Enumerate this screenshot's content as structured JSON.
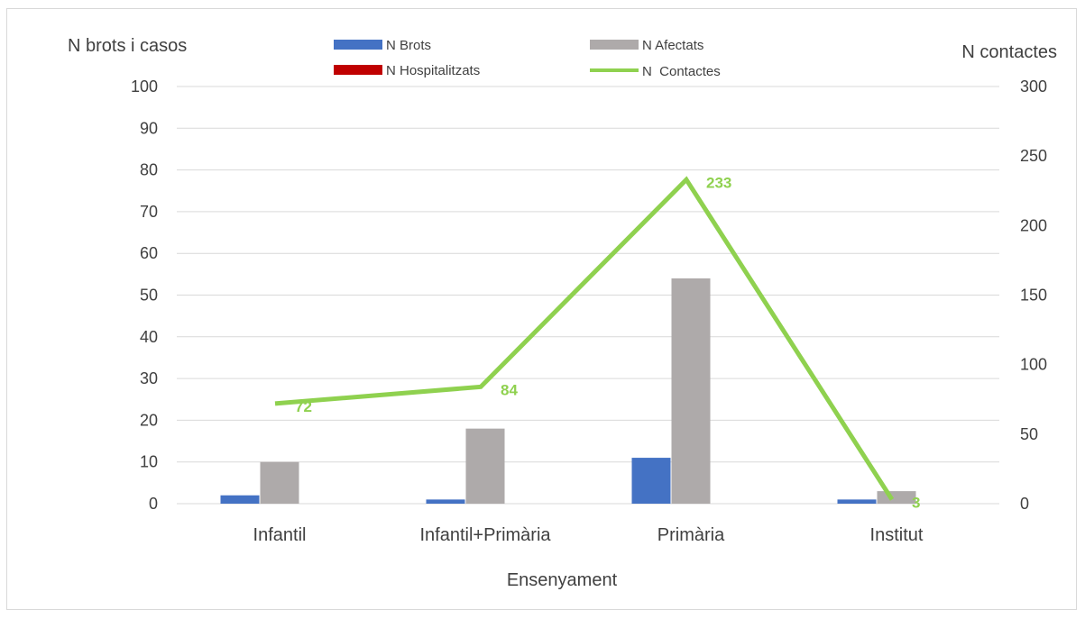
{
  "chart_data": {
    "type": "bar",
    "categories": [
      "Infantil",
      "Infantil+Primària",
      "Primària",
      "Institut"
    ],
    "xlabel": "Ensenyament",
    "ylabel_left": "N brots i casos",
    "ylabel_right": "N contactes",
    "ylim_left": [
      0,
      100
    ],
    "ylim_right": [
      0,
      300
    ],
    "yticks_left": [
      "0",
      "10",
      "20",
      "30",
      "40",
      "50",
      "60",
      "70",
      "80",
      "90",
      "100"
    ],
    "yticks_right": [
      "0",
      "50",
      "100",
      "150",
      "200",
      "250",
      "300"
    ],
    "grid": true,
    "legend_position": "top",
    "series": [
      {
        "name": "N Brots",
        "type": "bar",
        "axis": "left",
        "color": "#4472c4",
        "values": [
          2,
          1,
          11,
          1
        ]
      },
      {
        "name": "N Afectats",
        "type": "bar",
        "axis": "left",
        "color": "#aeaaaa",
        "values": [
          10,
          18,
          54,
          3
        ]
      },
      {
        "name": "N Hospitalitzats",
        "type": "bar",
        "axis": "left",
        "color": "#c00000",
        "values": [
          0,
          0,
          0,
          0
        ]
      },
      {
        "name": "N  Contactes",
        "type": "line",
        "axis": "right",
        "color": "#8fd14f",
        "values": [
          72,
          84,
          233,
          3
        ],
        "data_labels": [
          "72",
          "84",
          "233",
          "3"
        ]
      }
    ]
  }
}
